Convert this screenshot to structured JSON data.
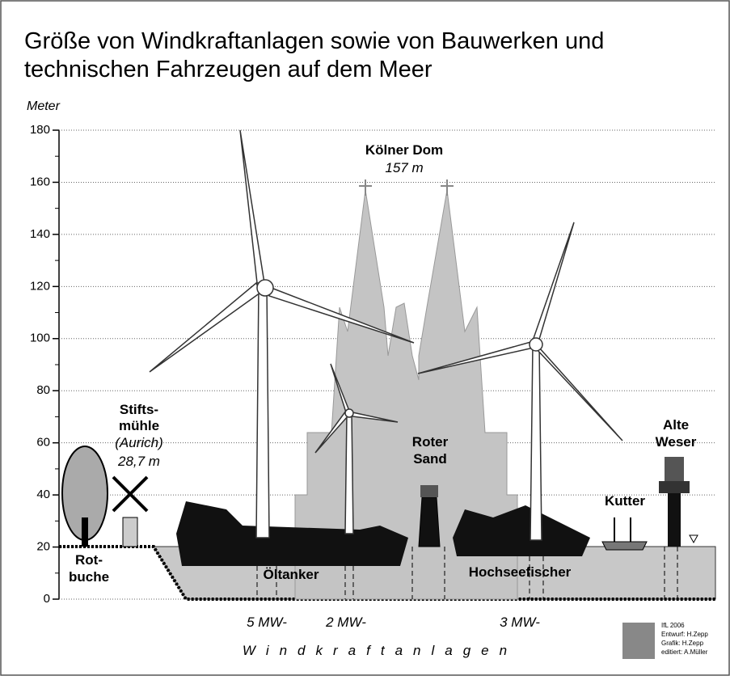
{
  "title_lines": [
    "Größe von Windkraftanlagen sowie von Bauwerken und",
    "technischen Fahrzeugen auf dem Meer"
  ],
  "axis": {
    "label": "Meter",
    "ticks": [
      0,
      20,
      40,
      60,
      80,
      100,
      120,
      140,
      160,
      180
    ]
  },
  "labels": {
    "dom": "Kölner Dom",
    "dom_height": "157 m",
    "muehle": [
      "Stifts-",
      "mühle",
      "(Aurich)",
      "28,7 m"
    ],
    "buche": [
      "Rot-",
      "buche"
    ],
    "roter_sand": [
      "Roter",
      "Sand"
    ],
    "alte_weser": [
      "Alte",
      "Weser"
    ],
    "kutter": "Kutter",
    "oeltanker": "Öltanker",
    "fischer": "Hochseefischer",
    "mw5": "5 MW-",
    "mw2": "2 MW-",
    "mw3": "3 MW-",
    "wka": "Windkraftanlagen"
  },
  "credits": [
    "IfL 2006",
    "Entwurf: H.Zepp",
    "Grafik: H.Zepp",
    "editiert: A.Müller"
  ]
}
